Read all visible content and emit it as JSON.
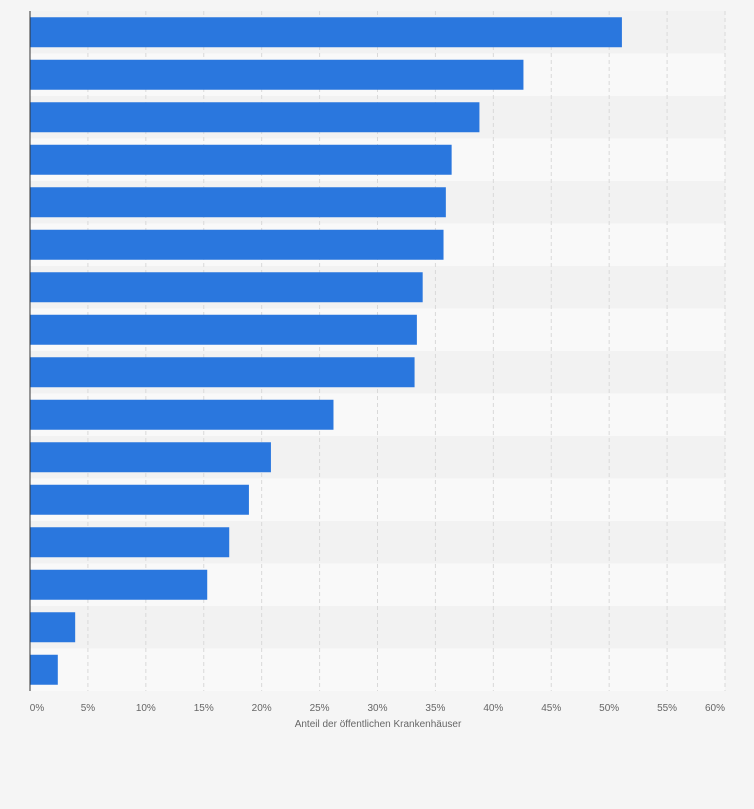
{
  "chart_data": {
    "type": "bar",
    "orientation": "horizontal",
    "values": [
      51.1,
      42.6,
      38.8,
      36.4,
      35.9,
      35.7,
      33.9,
      33.4,
      33.2,
      26.2,
      20.8,
      18.9,
      17.2,
      15.3,
      3.9,
      2.4
    ],
    "xlabel": "Anteil der öffentlichen Krankenhäuser",
    "xlim": [
      0,
      60
    ],
    "x_ticks": [
      "0%",
      "5%",
      "10%",
      "15%",
      "20%",
      "25%",
      "30%",
      "35%",
      "40%",
      "45%",
      "50%",
      "55%",
      "60%"
    ],
    "grid": true,
    "legend": "none",
    "colors": {
      "bar": "#2a77de",
      "band_dark": "#f2f2f2",
      "band_light": "#f9f9f9",
      "grid": "#d9d9d9",
      "axis": "#333333"
    }
  }
}
